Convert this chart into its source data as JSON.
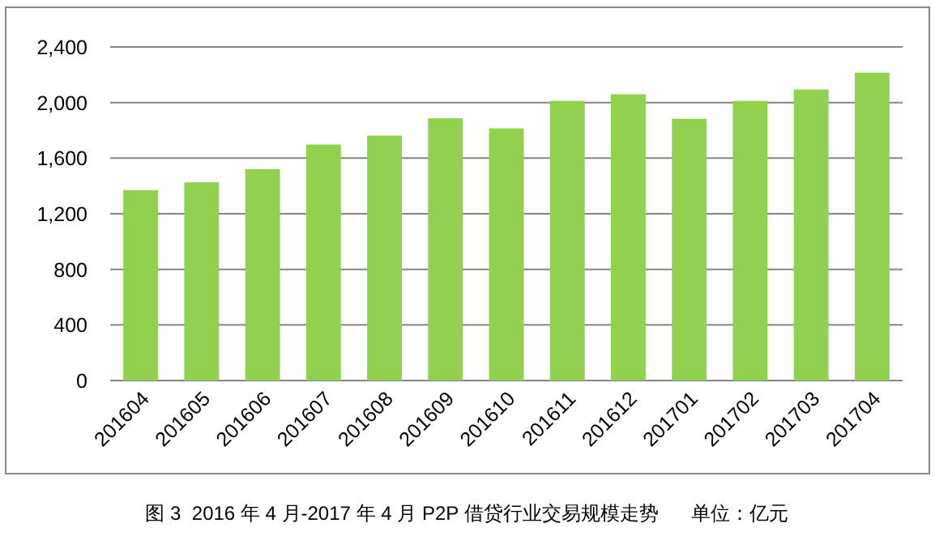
{
  "chart_data": {
    "type": "bar",
    "categories": [
      "201604",
      "201605",
      "201606",
      "201607",
      "201608",
      "201609",
      "201610",
      "201611",
      "201612",
      "201701",
      "201702",
      "201703",
      "201704"
    ],
    "values": [
      1370,
      1426,
      1521,
      1698,
      1762,
      1887,
      1814,
      2012,
      2060,
      1883,
      2012,
      2094,
      2215
    ],
    "color": "#92d050",
    "ylim": [
      0,
      2400
    ],
    "yticks": [
      {
        "value": 0,
        "label": "0"
      },
      {
        "value": 400,
        "label": "400"
      },
      {
        "value": 800,
        "label": "800"
      },
      {
        "value": 1200,
        "label": "1,200"
      },
      {
        "value": 1600,
        "label": "1,600"
      },
      {
        "value": 2000,
        "label": "2,000"
      },
      {
        "value": 2400,
        "label": "2,400"
      }
    ],
    "grid": "y",
    "annotations": [
      "图 3  2016 年 4 月-2017 年 4 月 P2P 借贷行业交易规模走势      单位：亿元"
    ]
  }
}
